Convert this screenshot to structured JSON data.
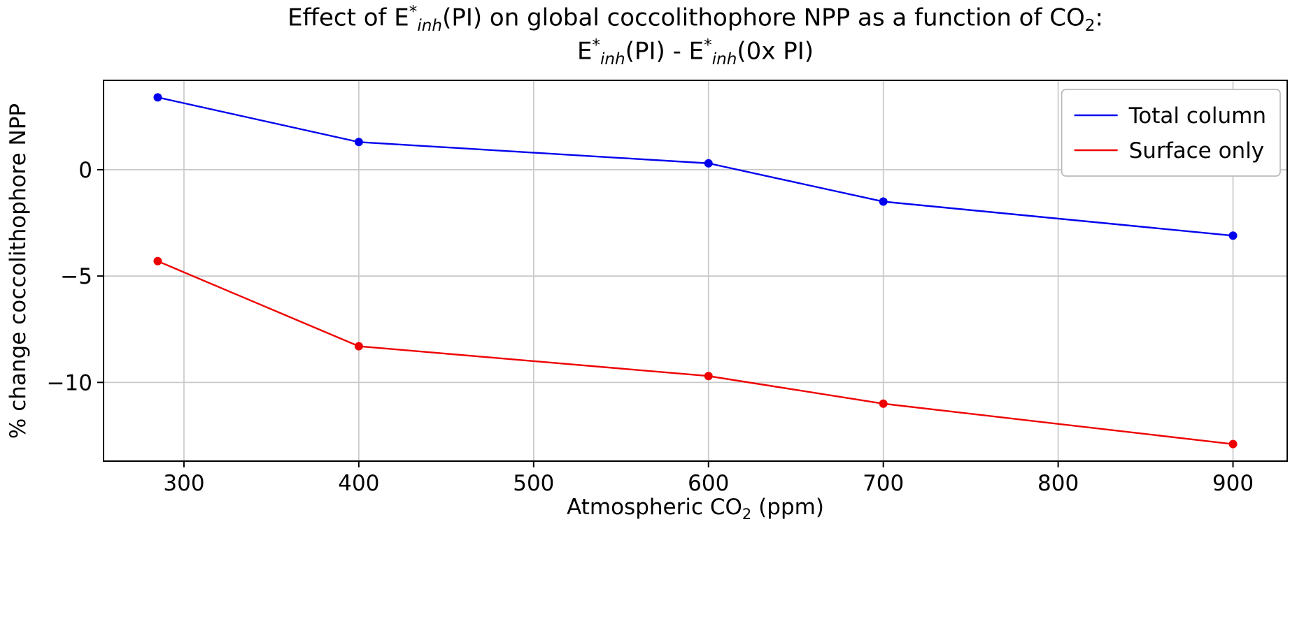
{
  "figure": {
    "title_line1_segments": [
      {
        "t": "Effect of E"
      },
      {
        "t": "*",
        "c": "sup"
      },
      {
        "t": "inh",
        "c": "subi"
      },
      {
        "t": "(PI) on global coccolithophore NPP as a function of CO"
      },
      {
        "t": "2",
        "c": "sub"
      },
      {
        "t": ":"
      }
    ],
    "title_line2_segments": [
      {
        "t": "E"
      },
      {
        "t": "*",
        "c": "sup"
      },
      {
        "t": "inh",
        "c": "subi"
      },
      {
        "t": "(PI) - E"
      },
      {
        "t": "*",
        "c": "sup"
      },
      {
        "t": "inh",
        "c": "subi"
      },
      {
        "t": "(0x PI)"
      }
    ],
    "xlabel_segments": [
      {
        "t": "Atmospheric CO"
      },
      {
        "t": "2",
        "c": "sub"
      },
      {
        "t": " (ppm)"
      }
    ],
    "ylabel": "% change coccolithophore NPP"
  },
  "chart_data": {
    "type": "line",
    "title": "Effect of E*_inh(PI) on global coccolithophore NPP as a function of CO2: E*_inh(PI) - E*_inh(0x PI)",
    "xlabel": "Atmospheric CO2 (ppm)",
    "ylabel": "% change coccolithophore NPP",
    "xlim": [
      254,
      931
    ],
    "ylim": [
      -13.7,
      4.2
    ],
    "x_ticks": [
      300,
      400,
      500,
      600,
      700,
      800,
      900
    ],
    "y_ticks": [
      0,
      -5,
      -10
    ],
    "grid": true,
    "marker": "o",
    "legend": {
      "position": "upper right"
    },
    "colors": {
      "grid": "#c9c9c9",
      "spine": "#000000",
      "background": "#ffffff",
      "legend_border": "#b9b9b9"
    },
    "series": [
      {
        "name": "Total column",
        "color": "#0000ee",
        "x": [
          285,
          400,
          600,
          700,
          900
        ],
        "y": [
          3.4,
          1.3,
          0.3,
          -1.5,
          -3.1
        ]
      },
      {
        "name": "Surface only",
        "color": "#ee0000",
        "x": [
          285,
          400,
          600,
          700,
          900
        ],
        "y": [
          -4.3,
          -8.3,
          -9.7,
          -11.0,
          -12.9
        ]
      }
    ]
  }
}
